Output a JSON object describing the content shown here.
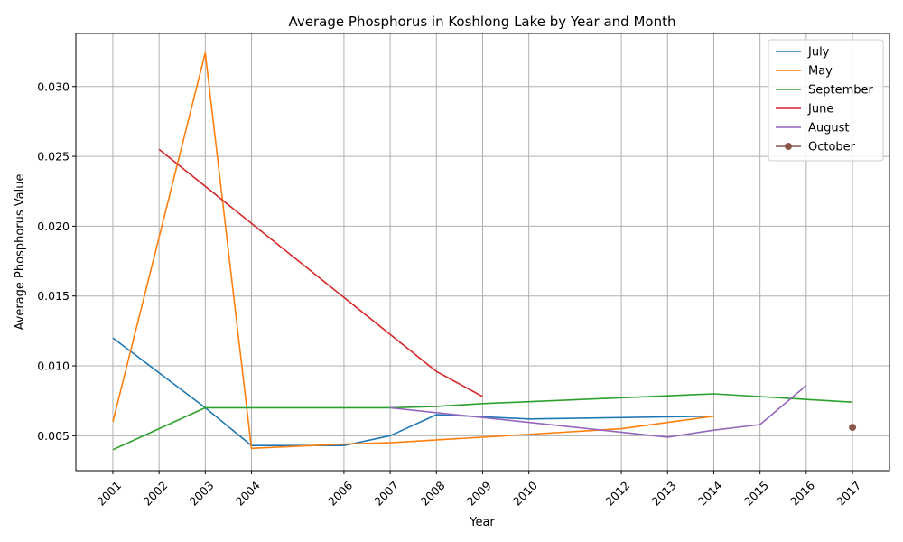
{
  "chart_data": {
    "type": "line",
    "title": "Average Phosphorus in Koshlong Lake by Year and Month",
    "xlabel": "Year",
    "ylabel": "Average Phosphorus Value",
    "xlim": [
      2000.2,
      2017.8
    ],
    "ylim": [
      0.0025,
      0.0338
    ],
    "x_ticks": [
      2001,
      2002,
      2003,
      2004,
      2006,
      2007,
      2008,
      2009,
      2010,
      2012,
      2013,
      2014,
      2015,
      2016,
      2017
    ],
    "y_ticks": [
      0.005,
      0.01,
      0.015,
      0.02,
      0.025,
      0.03
    ],
    "y_tick_labels": [
      "0.005",
      "0.010",
      "0.015",
      "0.020",
      "0.025",
      "0.030"
    ],
    "grid": true,
    "legend_position": "top-right",
    "series": [
      {
        "name": "July",
        "color": "#1f77b4",
        "marker": false,
        "x": [
          2001,
          2003,
          2004,
          2006,
          2007,
          2008,
          2010,
          2014
        ],
        "y": [
          0.012,
          0.007,
          0.0043,
          0.0043,
          0.005,
          0.0065,
          0.0062,
          0.0064
        ]
      },
      {
        "name": "May",
        "color": "#ff7f0e",
        "marker": false,
        "x": [
          2001,
          2003,
          2004,
          2006,
          2007,
          2009,
          2012,
          2014
        ],
        "y": [
          0.006,
          0.0324,
          0.0041,
          0.0044,
          0.0045,
          0.0049,
          0.0055,
          0.0064
        ]
      },
      {
        "name": "September",
        "color": "#2ca02c",
        "marker": false,
        "x": [
          2001,
          2003,
          2004,
          2006,
          2007,
          2008,
          2009,
          2014,
          2017
        ],
        "y": [
          0.004,
          0.007,
          0.007,
          0.007,
          0.007,
          0.0071,
          0.0073,
          0.008,
          0.0074
        ]
      },
      {
        "name": "June",
        "color": "#d62728",
        "marker": false,
        "x": [
          2002,
          2008,
          2009
        ],
        "y": [
          0.0255,
          0.0096,
          0.0078
        ]
      },
      {
        "name": "August",
        "color": "#9467bd",
        "marker": false,
        "x": [
          2007,
          2009,
          2013,
          2014,
          2015,
          2016
        ],
        "y": [
          0.007,
          0.0063,
          0.0049,
          0.0054,
          0.0058,
          0.0086
        ]
      },
      {
        "name": "October",
        "color": "#8c564b",
        "marker": true,
        "x": [
          2017
        ],
        "y": [
          0.0056
        ]
      }
    ]
  }
}
